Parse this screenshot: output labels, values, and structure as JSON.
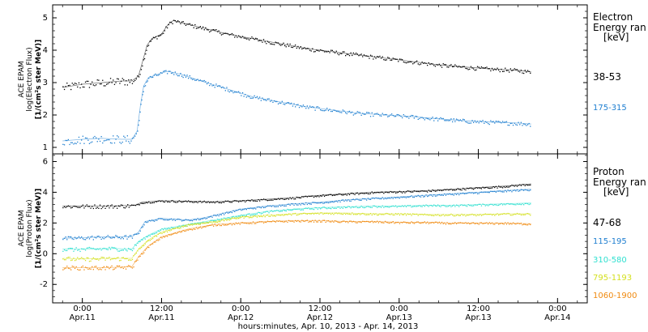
{
  "chart_data": [
    {
      "type": "scatter",
      "panel": "electron",
      "ylabel_lines": [
        "ACE EPAM",
        "log(Electron Flux)",
        "[1/(cm²s ster MeV)]"
      ],
      "ylim": [
        0.8,
        5.4
      ],
      "yticks": [
        1,
        2,
        3,
        4,
        5
      ],
      "legend_title": [
        "Electron",
        "Energy ran",
        "[keV]"
      ],
      "series": [
        {
          "name": "38-53",
          "color": "#000000",
          "points": [
            [
              -3,
              2.85
            ],
            [
              0,
              2.95
            ],
            [
              3,
              3.0
            ],
            [
              6,
              3.05
            ],
            [
              7.5,
              3.05
            ],
            [
              8.5,
              3.2
            ],
            [
              9.2,
              3.7
            ],
            [
              9.8,
              4.15
            ],
            [
              10.5,
              4.35
            ],
            [
              12,
              4.5
            ],
            [
              13,
              4.8
            ],
            [
              13.8,
              4.92
            ],
            [
              15,
              4.85
            ],
            [
              18,
              4.7
            ],
            [
              22,
              4.5
            ],
            [
              26,
              4.35
            ],
            [
              30,
              4.2
            ],
            [
              34,
              4.05
            ],
            [
              38,
              3.95
            ],
            [
              42,
              3.85
            ],
            [
              46,
              3.75
            ],
            [
              50,
              3.65
            ],
            [
              54,
              3.55
            ],
            [
              58,
              3.48
            ],
            [
              62,
              3.42
            ],
            [
              66,
              3.38
            ],
            [
              68,
              3.33
            ]
          ]
        },
        {
          "name": "175-315",
          "color": "#1f7fd0",
          "points": [
            [
              -3,
              1.2
            ],
            [
              0,
              1.25
            ],
            [
              3,
              1.28
            ],
            [
              6,
              1.25
            ],
            [
              7.5,
              1.25
            ],
            [
              8.3,
              1.5
            ],
            [
              8.8,
              2.3
            ],
            [
              9.3,
              2.9
            ],
            [
              10,
              3.15
            ],
            [
              12,
              3.3
            ],
            [
              13,
              3.35
            ],
            [
              15,
              3.25
            ],
            [
              18,
              3.05
            ],
            [
              22,
              2.8
            ],
            [
              26,
              2.55
            ],
            [
              30,
              2.4
            ],
            [
              34,
              2.25
            ],
            [
              38,
              2.15
            ],
            [
              42,
              2.05
            ],
            [
              46,
              2.0
            ],
            [
              50,
              1.95
            ],
            [
              54,
              1.88
            ],
            [
              58,
              1.82
            ],
            [
              62,
              1.78
            ],
            [
              66,
              1.75
            ],
            [
              68,
              1.72
            ]
          ]
        }
      ]
    },
    {
      "type": "scatter",
      "panel": "proton",
      "ylabel_lines": [
        "ACE EPAM",
        "log(Proton Flux)",
        "[1/(cm²s ster MeV)]"
      ],
      "ylim": [
        -3.2,
        6.5
      ],
      "yticks": [
        -2,
        0,
        2,
        4,
        6
      ],
      "legend_title": [
        "Proton",
        "Energy ran",
        "[keV]"
      ],
      "series": [
        {
          "name": "47-68",
          "color": "#000000",
          "points": [
            [
              -3,
              3.1
            ],
            [
              0,
              3.1
            ],
            [
              4,
              3.1
            ],
            [
              8,
              3.15
            ],
            [
              9,
              3.35
            ],
            [
              12,
              3.45
            ],
            [
              16,
              3.42
            ],
            [
              20,
              3.38
            ],
            [
              24,
              3.45
            ],
            [
              28,
              3.55
            ],
            [
              32,
              3.65
            ],
            [
              36,
              3.8
            ],
            [
              40,
              3.9
            ],
            [
              44,
              4.0
            ],
            [
              48,
              4.05
            ],
            [
              52,
              4.1
            ],
            [
              56,
              4.2
            ],
            [
              60,
              4.3
            ],
            [
              64,
              4.4
            ],
            [
              68,
              4.55
            ]
          ]
        },
        {
          "name": "115-195",
          "color": "#1f7fd0",
          "points": [
            [
              -3,
              1.0
            ],
            [
              0,
              1.05
            ],
            [
              4,
              1.1
            ],
            [
              7.5,
              1.1
            ],
            [
              8.5,
              1.4
            ],
            [
              9.5,
              2.1
            ],
            [
              12,
              2.3
            ],
            [
              16,
              2.2
            ],
            [
              18,
              2.3
            ],
            [
              20,
              2.5
            ],
            [
              24,
              2.9
            ],
            [
              28,
              3.1
            ],
            [
              32,
              3.25
            ],
            [
              36,
              3.35
            ],
            [
              40,
              3.5
            ],
            [
              44,
              3.6
            ],
            [
              48,
              3.7
            ],
            [
              52,
              3.8
            ],
            [
              56,
              3.9
            ],
            [
              60,
              4.0
            ],
            [
              64,
              4.1
            ],
            [
              68,
              4.2
            ]
          ]
        },
        {
          "name": "310-580",
          "color": "#30e0d0",
          "points": [
            [
              -3,
              0.3
            ],
            [
              0,
              0.3
            ],
            [
              4,
              0.35
            ],
            [
              7.5,
              0.3
            ],
            [
              8.5,
              0.8
            ],
            [
              10,
              1.2
            ],
            [
              12,
              1.6
            ],
            [
              16,
              1.9
            ],
            [
              20,
              2.2
            ],
            [
              24,
              2.5
            ],
            [
              28,
              2.75
            ],
            [
              32,
              2.9
            ],
            [
              36,
              3.0
            ],
            [
              40,
              3.05
            ],
            [
              44,
              3.1
            ],
            [
              48,
              3.1
            ],
            [
              52,
              3.15
            ],
            [
              56,
              3.15
            ],
            [
              60,
              3.2
            ],
            [
              64,
              3.25
            ],
            [
              68,
              3.3
            ]
          ]
        },
        {
          "name": "795-1193",
          "color": "#d4e020",
          "points": [
            [
              -3,
              -0.3
            ],
            [
              0,
              -0.35
            ],
            [
              4,
              -0.3
            ],
            [
              7.5,
              -0.3
            ],
            [
              8.5,
              0.3
            ],
            [
              10,
              0.9
            ],
            [
              12,
              1.4
            ],
            [
              16,
              1.9
            ],
            [
              20,
              2.1
            ],
            [
              24,
              2.4
            ],
            [
              28,
              2.5
            ],
            [
              32,
              2.6
            ],
            [
              36,
              2.65
            ],
            [
              40,
              2.65
            ],
            [
              44,
              2.6
            ],
            [
              48,
              2.6
            ],
            [
              52,
              2.55
            ],
            [
              56,
              2.55
            ],
            [
              60,
              2.55
            ],
            [
              64,
              2.6
            ],
            [
              68,
              2.6
            ]
          ]
        },
        {
          "name": "1060-1900",
          "color": "#f08a10",
          "points": [
            [
              -3,
              -0.9
            ],
            [
              0,
              -0.9
            ],
            [
              4,
              -0.9
            ],
            [
              7.5,
              -0.85
            ],
            [
              8.5,
              -0.2
            ],
            [
              10,
              0.5
            ],
            [
              12,
              1.1
            ],
            [
              16,
              1.6
            ],
            [
              20,
              1.9
            ],
            [
              24,
              2.0
            ],
            [
              28,
              2.1
            ],
            [
              32,
              2.15
            ],
            [
              36,
              2.15
            ],
            [
              40,
              2.1
            ],
            [
              44,
              2.1
            ],
            [
              48,
              2.05
            ],
            [
              52,
              2.05
            ],
            [
              56,
              2.0
            ],
            [
              60,
              2.0
            ],
            [
              64,
              2.0
            ],
            [
              68,
              1.95
            ]
          ]
        }
      ]
    }
  ],
  "x_axis": {
    "xlim_hours": [
      -4.5,
      76.5
    ],
    "tick_hours": [
      0,
      12,
      24,
      36,
      48,
      60,
      72
    ],
    "tick_labels": [
      "0:00",
      "12:00",
      "0:00",
      "12:00",
      "0:00",
      "12:00",
      "0:00"
    ],
    "date_labels": [
      "Apr.11",
      "Apr.11",
      "Apr.12",
      "Apr.12",
      "Apr.13",
      "Apr.13",
      "Apr.14"
    ],
    "title": "hours:minutes, Apr. 10, 2013 - Apr. 14, 2013"
  }
}
